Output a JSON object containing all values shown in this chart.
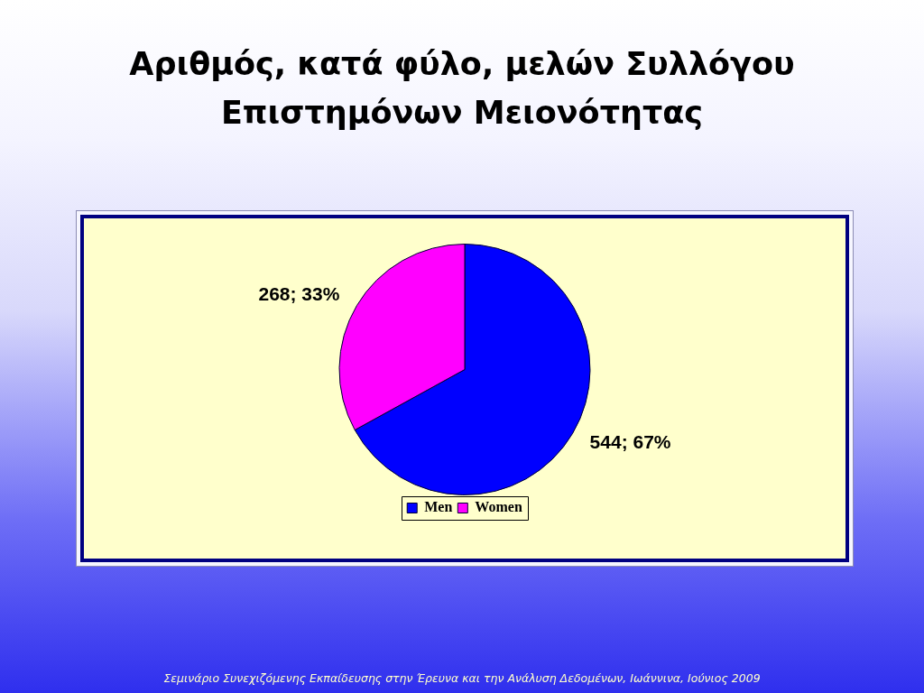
{
  "chart_data": {
    "type": "pie",
    "title": "Αριθμός, κατά φύλο, μελών Συλλόγου Επιστημόνων Μειονότητας",
    "categories": [
      "Men",
      "Women"
    ],
    "values": [
      544,
      268
    ],
    "colors": [
      "#0000ff",
      "#ff00ff"
    ],
    "value_labels": [
      "544; 67%",
      "268; 33%"
    ],
    "legend": "bottom",
    "annotations": [
      "Σεμινάριο Συνεχιζόμενης Εκπαίδευσης στην Έρευνα και την Ανάλυση Δεδομένων, Ιωάννινα, Ιούνιος 2009"
    ]
  }
}
